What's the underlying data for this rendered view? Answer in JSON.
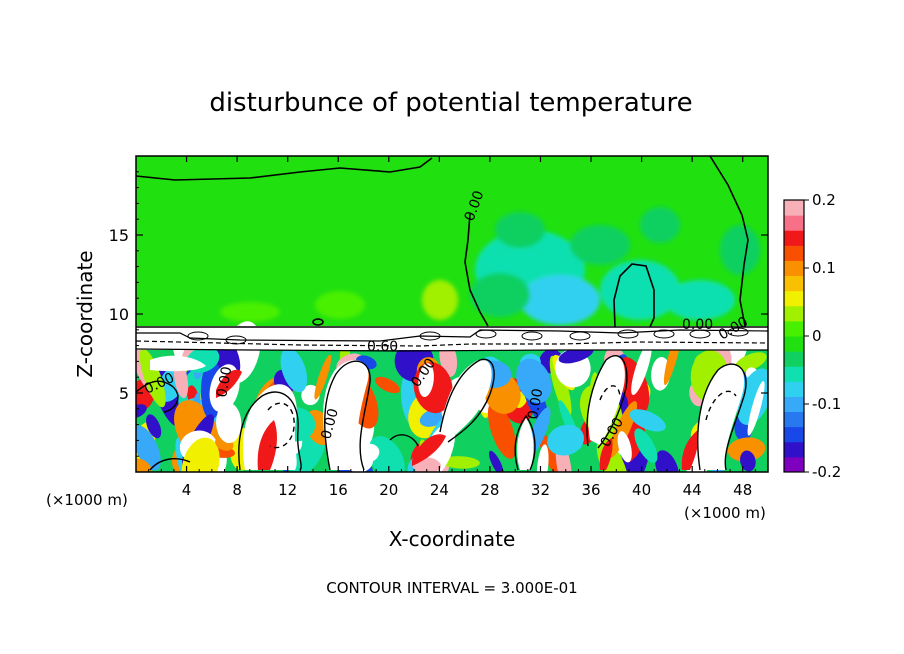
{
  "chart_data": {
    "type": "heatmap",
    "title": "disturbunce of potential temperature",
    "xlabel": "X-coordinate",
    "ylabel": "Z-coordinate",
    "x_unit_left": "(×1000 m)",
    "x_unit_right": "(×1000 m)",
    "x_ticks": [
      "4",
      "8",
      "12",
      "16",
      "20",
      "24",
      "28",
      "32",
      "36",
      "40",
      "44",
      "48"
    ],
    "y_ticks": [
      "5",
      "10",
      "15"
    ],
    "xlim": [
      0,
      50
    ],
    "ylim": [
      0,
      20
    ],
    "colorbar": {
      "range": [
        -0.2,
        0.2
      ],
      "tick_labels": [
        "0.2",
        "0.1",
        "0",
        "-0.1",
        "-0.2"
      ],
      "colors": [
        "#8000c0",
        "#3010c8",
        "#1848e8",
        "#2878f0",
        "#38a8f8",
        "#30d0f0",
        "#10e0b0",
        "#10d060",
        "#20e010",
        "#48f000",
        "#a0f000",
        "#f0f000",
        "#f8c000",
        "#f89000",
        "#f85000",
        "#f01818",
        "#f87088",
        "#f8b0b8"
      ]
    },
    "contour_labels": [
      "0.00",
      "0.00",
      "0.00",
      "0.00",
      "0.00",
      "0.00",
      "0.60",
      "0.00",
      "0.00",
      "0.00"
    ],
    "footer": "CONTOUR INTERVAL = 3.000E-01"
  }
}
